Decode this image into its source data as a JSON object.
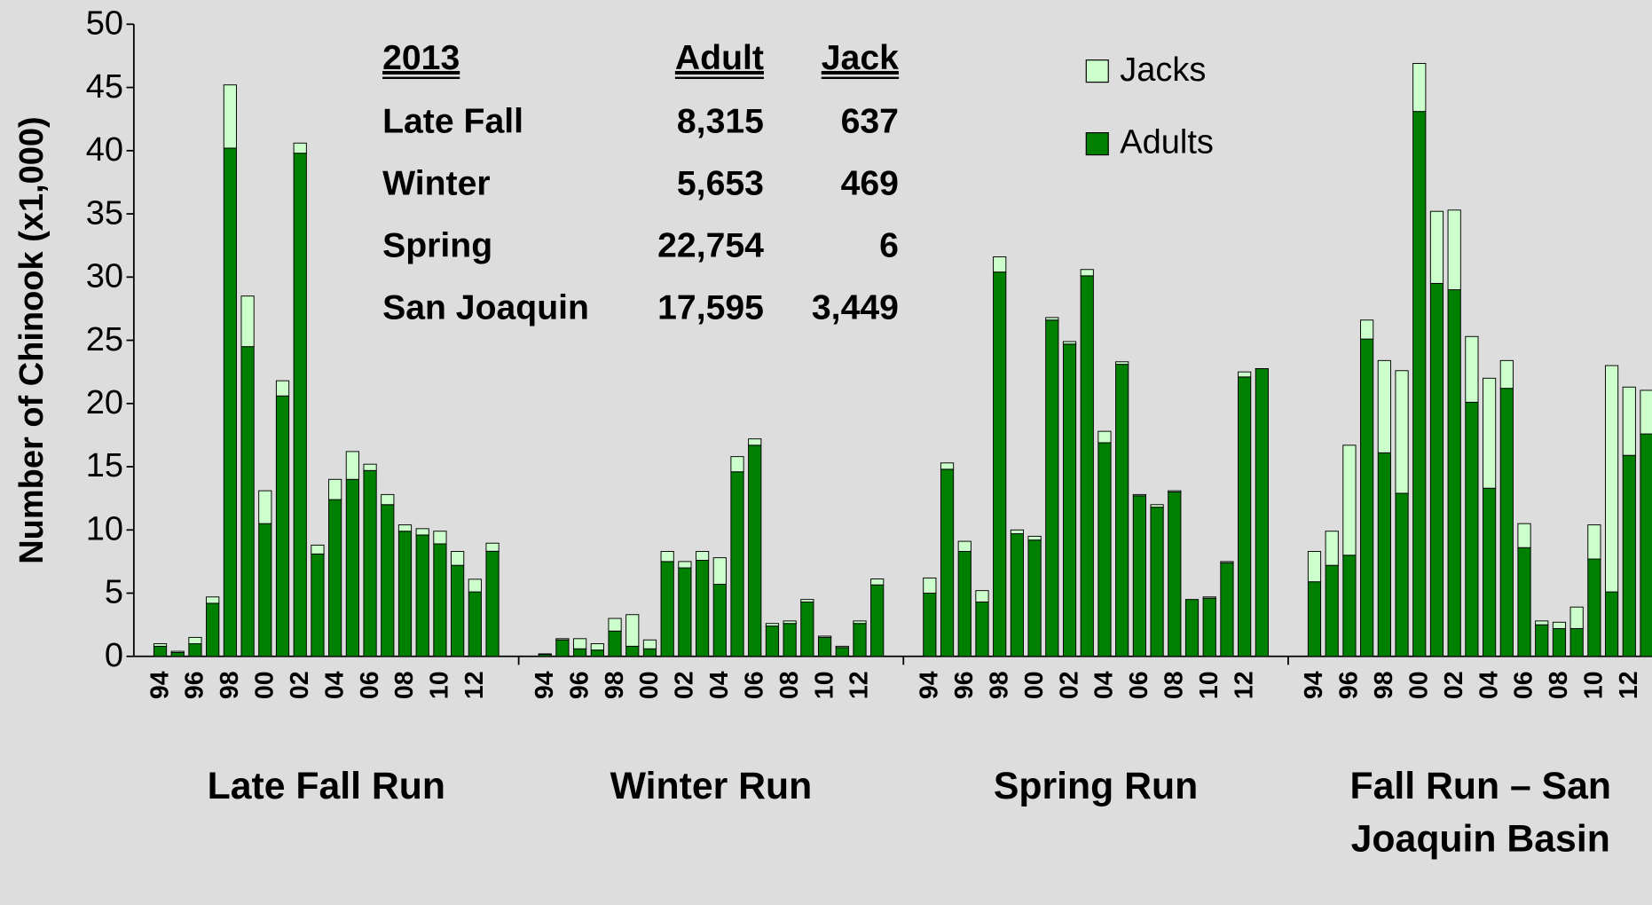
{
  "chart_data": {
    "type": "stacked_bar",
    "y_axis_label": "Number of Chinook (x1,000)",
    "ylim": [
      0,
      50
    ],
    "yticks": [
      0,
      5,
      10,
      15,
      20,
      25,
      30,
      35,
      40,
      45,
      50
    ],
    "grid": false,
    "legend_position": "top-right",
    "groups": [
      {
        "label": "Late Fall Run",
        "categories": [
          "94",
          null,
          "96",
          null,
          "98",
          null,
          "00",
          null,
          "02",
          null,
          "04",
          null,
          "06",
          null,
          "08",
          null,
          "10",
          null,
          "12",
          null
        ]
      },
      {
        "label": "Winter Run",
        "categories": [
          "94",
          null,
          "96",
          null,
          "98",
          null,
          "00",
          null,
          "02",
          null,
          "04",
          null,
          "06",
          null,
          "08",
          null,
          "10",
          null,
          "12",
          null
        ]
      },
      {
        "label": "Spring Run",
        "categories": [
          "94",
          null,
          "96",
          null,
          "98",
          null,
          "00",
          null,
          "02",
          null,
          "04",
          null,
          "06",
          null,
          "08",
          null,
          "10",
          null,
          "12",
          null
        ]
      },
      {
        "label": "Fall Run – San Joaquin Basin",
        "categories": [
          "94",
          null,
          "96",
          null,
          "98",
          null,
          "00",
          null,
          "02",
          null,
          "04",
          null,
          "06",
          null,
          "08",
          null,
          "10",
          null,
          "12",
          null
        ]
      }
    ],
    "series": [
      {
        "name": "Adults",
        "color": "#008000",
        "values": [
          [
            0.8,
            0.3,
            1.0,
            4.2,
            40.2,
            24.5,
            10.5,
            20.6,
            39.8,
            8.1,
            12.4,
            14.0,
            14.7,
            12.0,
            9.9,
            9.6,
            8.9,
            7.2,
            5.1,
            8.315
          ],
          [
            0.15,
            1.3,
            0.6,
            0.5,
            2.0,
            0.8,
            0.6,
            7.5,
            7.0,
            7.6,
            5.7,
            14.6,
            16.7,
            2.4,
            2.6,
            4.3,
            1.5,
            0.7,
            2.6,
            5.653
          ],
          [
            5.0,
            14.8,
            8.3,
            4.3,
            30.4,
            9.7,
            9.2,
            26.6,
            24.7,
            30.1,
            16.9,
            23.1,
            12.7,
            11.8,
            13.0,
            4.5,
            4.6,
            7.4,
            22.1,
            22.754
          ],
          [
            5.9,
            7.2,
            8.0,
            25.1,
            16.1,
            12.9,
            43.1,
            29.5,
            29.0,
            20.1,
            13.3,
            21.2,
            8.6,
            2.5,
            2.2,
            2.2,
            7.7,
            5.1,
            15.9,
            17.595
          ]
        ]
      },
      {
        "name": "Jacks",
        "color": "#ccffcc",
        "values": [
          [
            0.2,
            0.1,
            0.5,
            0.5,
            5.0,
            4.0,
            2.6,
            1.2,
            0.8,
            0.7,
            1.6,
            2.2,
            0.5,
            0.8,
            0.5,
            0.5,
            1.0,
            1.1,
            1.0,
            0.637
          ],
          [
            0.05,
            0.1,
            0.8,
            0.5,
            1.0,
            2.5,
            0.7,
            0.8,
            0.5,
            0.7,
            2.1,
            1.2,
            0.5,
            0.2,
            0.2,
            0.2,
            0.1,
            0.1,
            0.2,
            0.469
          ],
          [
            1.2,
            0.5,
            0.8,
            0.9,
            1.2,
            0.3,
            0.3,
            0.2,
            0.2,
            0.5,
            0.9,
            0.2,
            0.1,
            0.2,
            0.1,
            0,
            0.1,
            0.1,
            0.4,
            0.006
          ],
          [
            2.4,
            2.7,
            8.7,
            1.5,
            7.3,
            9.7,
            3.8,
            5.7,
            6.3,
            5.2,
            8.7,
            2.2,
            1.9,
            0.3,
            0.5,
            1.7,
            2.7,
            17.9,
            5.4,
            3.449
          ]
        ]
      }
    ],
    "table": {
      "columns": [
        "2013",
        "Adult",
        "Jack"
      ],
      "rows": [
        [
          "Late Fall",
          "8,315",
          "637"
        ],
        [
          "Winter",
          "5,653",
          "469"
        ],
        [
          "Spring",
          "22,754",
          "6"
        ],
        [
          "San Joaquin",
          "17,595",
          "3,449"
        ]
      ]
    }
  }
}
